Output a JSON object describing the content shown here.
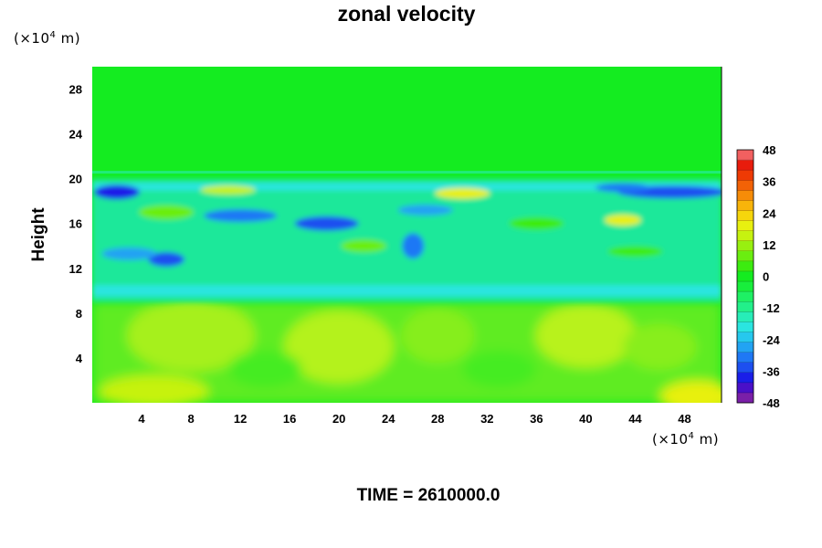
{
  "chart_data": {
    "type": "heatmap",
    "title": "zonal velocity",
    "xlabel": "",
    "ylabel": "Height",
    "x_unit": "(×10",
    "y_unit": "(×10",
    "unit_exponent": "4",
    "unit_suffix": " m)",
    "xlim": [
      0,
      51
    ],
    "ylim": [
      0,
      30
    ],
    "x_ticks": [
      4,
      8,
      12,
      16,
      20,
      24,
      28,
      32,
      36,
      40,
      44,
      48
    ],
    "y_ticks": [
      4,
      8,
      12,
      16,
      20,
      24,
      28
    ],
    "colorbar": {
      "min": -48,
      "max": 48,
      "step": 4,
      "tick_labels": [
        "48",
        "36",
        "24",
        "12",
        "0",
        "-12",
        "-24",
        "-36",
        "-48"
      ],
      "colors": [
        "#7a1fa8",
        "#4a10c8",
        "#1a1ee8",
        "#1d4ff0",
        "#1f78f5",
        "#22a3f3",
        "#26c8ee",
        "#2ae5e0",
        "#27edb8",
        "#22f08a",
        "#1ef064",
        "#18ee3c",
        "#14ec20",
        "#3cec10",
        "#6aee10",
        "#98f010",
        "#c6f210",
        "#e8f010",
        "#f6d60c",
        "#f8b40a",
        "#f68c08",
        "#f26206",
        "#ee3a04",
        "#e81c0c",
        "#f26060"
      ]
    },
    "regions": [
      {
        "band": "0-9",
        "description_value": "0 to 12",
        "dominant": "weak positive"
      },
      {
        "band": "9-20",
        "description_value": "-40 to 16",
        "dominant": "mixed"
      },
      {
        "band": "20-30",
        "description_value": "0",
        "dominant": "near zero"
      }
    ]
  },
  "footer": {
    "label": "TIME = 2610000.0"
  }
}
